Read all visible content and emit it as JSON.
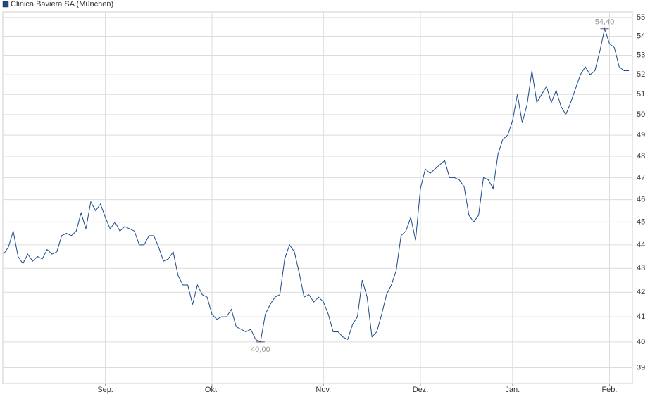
{
  "chart_data": {
    "type": "line",
    "categories": [
      null,
      null,
      null,
      null,
      null,
      null,
      null,
      null,
      null,
      null,
      null,
      null,
      null,
      null,
      null,
      null,
      null,
      null,
      null,
      null,
      null,
      "Sep.",
      null,
      null,
      null,
      null,
      null,
      null,
      null,
      null,
      null,
      null,
      null,
      null,
      null,
      null,
      null,
      null,
      null,
      null,
      null,
      null,
      null,
      "Okt.",
      null,
      null,
      null,
      null,
      null,
      null,
      null,
      null,
      null,
      null,
      null,
      null,
      null,
      null,
      null,
      null,
      null,
      null,
      null,
      null,
      null,
      null,
      "Nov.",
      null,
      null,
      null,
      null,
      null,
      null,
      null,
      null,
      null,
      null,
      null,
      null,
      null,
      null,
      null,
      null,
      null,
      null,
      null,
      "Dez.",
      null,
      null,
      null,
      null,
      null,
      null,
      null,
      null,
      null,
      null,
      null,
      null,
      null,
      null,
      null,
      null,
      null,
      null,
      "Jan.",
      null,
      null,
      null,
      null,
      null,
      null,
      null,
      null,
      null,
      null,
      null,
      null,
      null,
      null,
      null,
      null,
      null,
      null,
      null,
      "Feb.",
      null,
      null,
      null,
      null
    ],
    "series": [
      {
        "name": "Clinica Baviera SA (München)",
        "color": "#1a4a8a",
        "values": [
          43.6,
          43.9,
          44.6,
          43.5,
          43.2,
          43.6,
          43.3,
          43.5,
          43.4,
          43.8,
          43.6,
          43.7,
          44.4,
          44.5,
          44.4,
          44.6,
          45.4,
          44.7,
          45.9,
          45.5,
          45.8,
          45.2,
          44.7,
          45.0,
          44.6,
          44.8,
          44.7,
          44.6,
          44.0,
          44.0,
          44.4,
          44.4,
          43.9,
          43.3,
          43.4,
          43.7,
          42.7,
          42.3,
          42.3,
          41.5,
          42.3,
          41.9,
          41.8,
          41.1,
          40.9,
          41.0,
          41.0,
          41.3,
          40.6,
          40.5,
          40.4,
          40.5,
          40.1,
          40.0,
          41.1,
          41.5,
          41.8,
          41.9,
          43.4,
          44.0,
          43.7,
          42.8,
          41.8,
          41.9,
          41.6,
          41.8,
          41.6,
          41.1,
          40.4,
          40.4,
          40.2,
          40.1,
          40.7,
          41.0,
          42.5,
          41.8,
          40.2,
          40.4,
          41.1,
          41.9,
          42.3,
          42.9,
          44.4,
          44.6,
          45.2,
          44.2,
          46.5,
          47.4,
          47.2,
          47.4,
          47.6,
          47.8,
          47.0,
          47.0,
          46.9,
          46.6,
          45.3,
          45.0,
          45.3,
          47.0,
          46.9,
          46.5,
          48.1,
          48.8,
          49.0,
          49.7,
          51.0,
          49.6,
          50.5,
          52.2,
          50.6,
          51.0,
          51.4,
          50.6,
          51.2,
          50.4,
          50.0,
          50.6,
          51.3,
          52.0,
          52.4,
          52.0,
          52.2,
          53.2,
          54.4,
          53.6,
          53.4,
          52.4,
          52.2,
          52.2
        ],
        "value_labels": [
          null,
          null,
          null,
          null,
          null,
          null,
          null,
          null,
          null,
          null,
          null,
          null,
          null,
          null,
          null,
          null,
          null,
          null,
          null,
          null,
          null,
          null,
          null,
          null,
          null,
          null,
          null,
          null,
          null,
          null,
          null,
          null,
          null,
          null,
          null,
          null,
          null,
          null,
          null,
          null,
          null,
          null,
          null,
          null,
          null,
          null,
          null,
          null,
          null,
          null,
          null,
          null,
          null,
          "40,00",
          null,
          null,
          null,
          null,
          null,
          null,
          null,
          null,
          null,
          null,
          null,
          null,
          null,
          null,
          null,
          null,
          null,
          null,
          null,
          null,
          null,
          null,
          null,
          null,
          null,
          null,
          null,
          null,
          null,
          null,
          null,
          null,
          null,
          null,
          null,
          null,
          null,
          null,
          null,
          null,
          null,
          null,
          null,
          null,
          null,
          null,
          null,
          null,
          null,
          null,
          null,
          null,
          null,
          null,
          null,
          null,
          null,
          null,
          null,
          null,
          null,
          null,
          null,
          null,
          null,
          null,
          null,
          null,
          null,
          null,
          "54,40",
          null,
          null,
          null,
          null,
          null
        ]
      }
    ],
    "ylim": [
      38.4,
      55.3
    ],
    "yticks": [
      39,
      40,
      41,
      42,
      43,
      44,
      45,
      46,
      47,
      48,
      49,
      50,
      51,
      52,
      53,
      54,
      55
    ],
    "log_scale": true,
    "grid": true,
    "legend": "top-left"
  }
}
